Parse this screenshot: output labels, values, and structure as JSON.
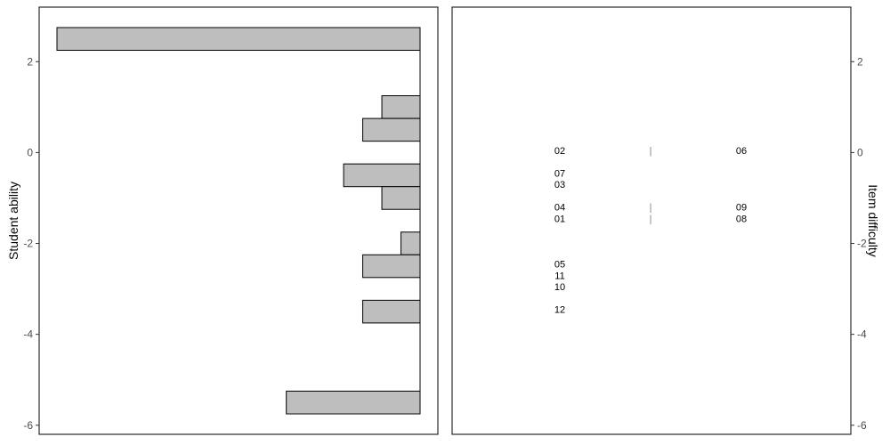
{
  "chart_data": [
    {
      "type": "bar",
      "orientation": "horizontal",
      "ylabel": "Student ability",
      "ylim": [
        -6.2,
        3.2
      ],
      "yticks": [
        2,
        0,
        -2,
        -4,
        -6
      ],
      "bin_width": 0.5,
      "bars": [
        {
          "y": 2.5,
          "count": 19
        },
        {
          "y": 1.0,
          "count": 2
        },
        {
          "y": 0.5,
          "count": 3
        },
        {
          "y": -0.5,
          "count": 4
        },
        {
          "y": -1.0,
          "count": 2
        },
        {
          "y": -2.0,
          "count": 1
        },
        {
          "y": -2.5,
          "count": 3
        },
        {
          "y": -3.5,
          "count": 3
        },
        {
          "y": -5.5,
          "count": 7
        }
      ],
      "max_count": 19,
      "grid": false,
      "bar_fill": "#bebebe",
      "bar_stroke": "#000000"
    },
    {
      "type": "scatter",
      "ylabel": "Item difficulty",
      "ylim": [
        -6.2,
        3.2
      ],
      "yticks": [
        2,
        0,
        -2,
        -4,
        -6
      ],
      "items": [
        {
          "label": "02",
          "y": 0.05,
          "col": 0
        },
        {
          "label": "|",
          "y": 0.05,
          "col": 1
        },
        {
          "label": "06",
          "y": 0.05,
          "col": 2
        },
        {
          "label": "07",
          "y": -0.45,
          "col": 0
        },
        {
          "label": "03",
          "y": -0.7,
          "col": 0
        },
        {
          "label": "04",
          "y": -1.2,
          "col": 0
        },
        {
          "label": "|",
          "y": -1.2,
          "col": 1
        },
        {
          "label": "09",
          "y": -1.2,
          "col": 2
        },
        {
          "label": "01",
          "y": -1.45,
          "col": 0
        },
        {
          "label": "|",
          "y": -1.45,
          "col": 1
        },
        {
          "label": "08",
          "y": -1.45,
          "col": 2
        },
        {
          "label": "05",
          "y": -2.45,
          "col": 0
        },
        {
          "label": "11",
          "y": -2.7,
          "col": 0
        },
        {
          "label": "10",
          "y": -2.95,
          "col": 0
        },
        {
          "label": "12",
          "y": -3.45,
          "col": 0
        }
      ],
      "separator_color": "#808080",
      "grid": false
    }
  ]
}
